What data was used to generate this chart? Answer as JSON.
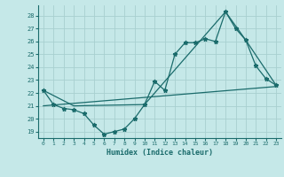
{
  "xlabel": "Humidex (Indice chaleur)",
  "bg_color": "#c5e8e8",
  "grid_color": "#a8d0d0",
  "line_color": "#1a6b6b",
  "xlim": [
    -0.5,
    23.5
  ],
  "ylim": [
    18.5,
    28.8
  ],
  "yticks": [
    19,
    20,
    21,
    22,
    23,
    24,
    25,
    26,
    27,
    28
  ],
  "xticks": [
    0,
    1,
    2,
    3,
    4,
    5,
    6,
    7,
    8,
    9,
    10,
    11,
    12,
    13,
    14,
    15,
    16,
    17,
    18,
    19,
    20,
    21,
    22,
    23
  ],
  "line1_x": [
    0,
    1,
    2,
    3,
    4,
    5,
    6,
    7,
    8,
    9,
    10,
    11,
    12,
    13,
    14,
    15,
    16,
    17,
    18,
    19,
    20,
    21,
    22,
    23
  ],
  "line1_y": [
    22.2,
    21.1,
    20.8,
    20.7,
    20.4,
    19.5,
    18.8,
    19.0,
    19.2,
    20.0,
    21.1,
    22.9,
    22.2,
    25.0,
    25.9,
    25.9,
    26.2,
    26.0,
    28.3,
    27.0,
    26.1,
    24.1,
    23.1,
    22.6
  ],
  "line2_x": [
    0,
    3,
    10,
    18,
    20,
    23
  ],
  "line2_y": [
    22.2,
    21.0,
    21.1,
    28.3,
    26.1,
    22.6
  ],
  "line3_x": [
    0,
    23
  ],
  "line3_y": [
    21.0,
    22.5
  ]
}
